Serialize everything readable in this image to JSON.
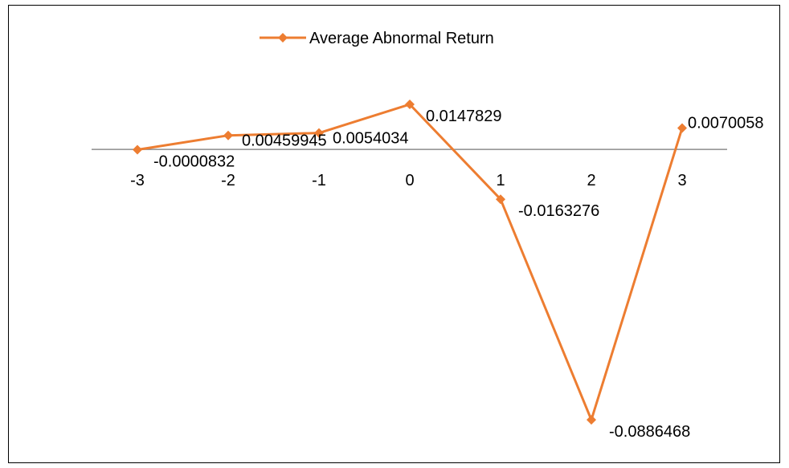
{
  "chart_data": {
    "type": "line",
    "title": "",
    "xlabel": "",
    "ylabel": "",
    "categories": [
      "-3",
      "-2",
      "-1",
      "0",
      "1",
      "2",
      "3"
    ],
    "series": [
      {
        "name": "Average Abnormal Return",
        "color": "#ED7D31",
        "marker": "diamond",
        "values": [
          -8.32e-05,
          0.00459945,
          0.0054034,
          0.0147829,
          -0.0163276,
          -0.0886468,
          0.0070058
        ],
        "data_labels": [
          "-0.0000832",
          "0.00459945",
          "0.0054034",
          "0.0147829",
          "-0.0163276",
          "-0.0886468",
          "0.0070058"
        ]
      }
    ],
    "ylim": [
      -0.0886468,
      0.0147829
    ],
    "axis_visible": false,
    "grid": false,
    "legend_position": "top"
  }
}
